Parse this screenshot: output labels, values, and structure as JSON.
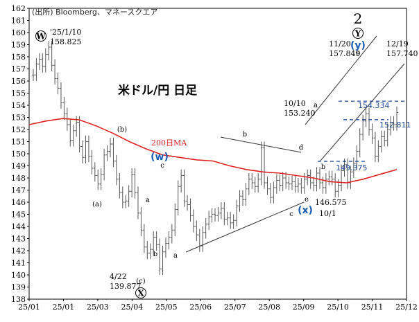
{
  "chart_data": {
    "type": "line",
    "title": "米ドル/円 日足",
    "source": "(出所) Bloomberg、マネースクエア",
    "ylim": [
      138,
      162
    ],
    "y_ticks": [
      138,
      139,
      140,
      141,
      142,
      143,
      144,
      145,
      146,
      147,
      148,
      149,
      150,
      151,
      152,
      153,
      154,
      155,
      156,
      157,
      158,
      159,
      160,
      161,
      162
    ],
    "x_tick_labels": [
      "25/01",
      "25/01",
      "25/03",
      "25/04",
      "25/05",
      "25/06",
      "25/07",
      "25/08",
      "25/09",
      "25/10",
      "25/11",
      "25/12"
    ],
    "series": [
      {
        "name": "",
        "kind": "ohlc",
        "x": [
          0,
          3,
          6,
          9,
          12,
          15,
          18,
          21,
          24,
          27,
          30,
          33,
          36,
          39,
          42,
          45,
          48,
          51,
          54,
          57,
          60,
          63,
          66,
          69,
          72,
          75,
          78,
          81,
          84,
          87,
          90,
          93,
          96,
          99,
          102,
          105,
          108,
          111,
          114,
          117,
          120,
          123,
          126,
          129,
          132,
          135,
          138,
          141,
          144,
          147,
          150,
          153,
          156,
          159,
          162,
          165,
          168,
          171,
          174,
          177,
          180,
          183,
          186,
          189,
          192,
          195,
          198,
          201,
          204,
          207,
          210,
          213,
          216,
          219,
          222,
          225,
          228,
          231,
          234,
          237,
          240,
          243,
          246,
          249,
          252,
          255,
          258,
          261,
          264,
          267,
          270,
          273,
          276,
          279,
          282,
          285,
          288,
          291,
          294,
          297,
          300,
          303,
          306,
          309,
          312,
          315,
          318,
          321,
          324,
          327,
          330,
          333,
          336,
          339,
          342,
          345,
          348,
          351,
          354
        ],
        "close": [
          156.5,
          157.4,
          157.8,
          157.2,
          158.2,
          158.8,
          157.3,
          156.2,
          155.4,
          154.2,
          153.3,
          152.4,
          151.1,
          151.9,
          152.6,
          150.6,
          149.7,
          151.0,
          149.8,
          148.8,
          148.2,
          147.5,
          148.3,
          149.9,
          150.2,
          150.8,
          149.4,
          147.9,
          146.8,
          146.0,
          146.1,
          146.9,
          148.3,
          146.8,
          145.1,
          143.7,
          142.3,
          141.8,
          142.1,
          143.1,
          142.5,
          140.5,
          141.9,
          142.6,
          143.1,
          143.7,
          145.4,
          147.3,
          148.2,
          146.1,
          145.8,
          144.9,
          144.0,
          143.3,
          142.4,
          143.5,
          144.2,
          144.8,
          145.0,
          144.9,
          145.1,
          145.5,
          144.6,
          144.7,
          144.3,
          144.5,
          145.7,
          146.5,
          146.2,
          147.1,
          147.9,
          147.6,
          147.3,
          147.9,
          150.5,
          147.6,
          147.1,
          146.4,
          147.2,
          147.8,
          147.4,
          148.0,
          147.6,
          147.5,
          147.7,
          147.3,
          147.5,
          147.2,
          147.9,
          148.2,
          147.6,
          147.4,
          148.4,
          147.6,
          147.2,
          147.9,
          148.1,
          147.9,
          146.9,
          147.4,
          148.6,
          149.1,
          147.6,
          148.5,
          149.2,
          150.2,
          151.6,
          152.7,
          153.3,
          152.0,
          151.3,
          149.8,
          150.6,
          151.4,
          151.1,
          152.0,
          152.6,
          152.4,
          153.4
        ],
        "high_low_pad": 1.0
      },
      {
        "name": "200日MA",
        "kind": "line",
        "color": "#e02020",
        "points": [
          [
            0,
            152.4
          ],
          [
            20,
            152.7
          ],
          [
            40,
            152.9
          ],
          [
            60,
            152.8
          ],
          [
            80,
            152.3
          ],
          [
            100,
            151.7
          ],
          [
            120,
            151.0
          ],
          [
            140,
            150.4
          ],
          [
            160,
            149.9
          ],
          [
            180,
            149.7
          ],
          [
            200,
            149.5
          ],
          [
            220,
            149.4
          ],
          [
            240,
            149.0
          ],
          [
            260,
            148.7
          ],
          [
            280,
            148.5
          ],
          [
            300,
            148.4
          ],
          [
            320,
            148.2
          ],
          [
            340,
            148.0
          ],
          [
            360,
            147.7
          ],
          [
            380,
            147.6
          ],
          [
            400,
            147.9
          ],
          [
            420,
            148.3
          ],
          [
            440,
            148.7
          ]
        ]
      }
    ],
    "annotations": {
      "circled_labels": [
        "W",
        "X",
        "Y"
      ],
      "blue_labels": [
        "(w)",
        "(x)",
        "(y)"
      ],
      "wave_labels": [
        "(a)",
        "(b)",
        "(c)",
        "a",
        "b",
        "c",
        "d",
        "e"
      ],
      "price_notes": [
        {
          "date": "'25/1/10",
          "price": "158.825"
        },
        {
          "date": "4/22",
          "price": "139.877"
        },
        {
          "date": "10/10",
          "price": "153.240"
        },
        {
          "date": "11/20",
          "price": "157.849"
        },
        {
          "date": "12/19",
          "price": "157.740"
        },
        {
          "date": "10/1",
          "price": "146.575"
        }
      ],
      "support_levels": [
        "154.334",
        "152.811",
        "149.375"
      ],
      "wave_count_label": "2",
      "ma_label": "200日MA"
    },
    "grid": false
  }
}
